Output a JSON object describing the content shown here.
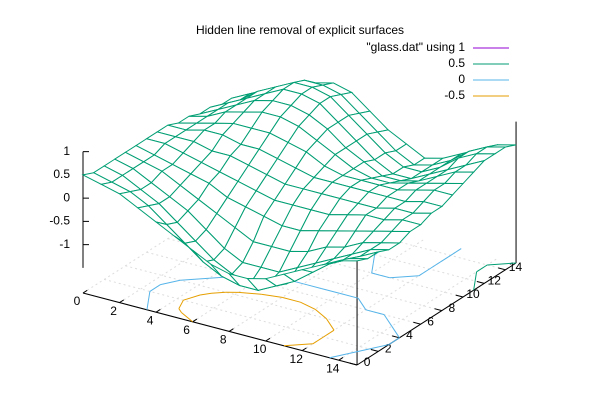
{
  "chart_data": {
    "type": "surface",
    "title": "Hidden line removal of explicit surfaces",
    "surface": {
      "name": "\"glass.dat\" using 1",
      "color": "#9400d3",
      "mesh_color": "#009e73"
    },
    "contours": [
      {
        "level": 0.5,
        "color": "#009e73"
      },
      {
        "level": 0,
        "color": "#56b4e9"
      },
      {
        "level": -0.5,
        "color": "#e69f00"
      }
    ],
    "x": [
      0,
      1,
      2,
      3,
      4,
      5,
      6,
      7,
      8,
      9,
      10,
      11,
      12,
      13,
      14,
      15
    ],
    "y": [
      0,
      1,
      2,
      3,
      4,
      5,
      6,
      7,
      8,
      9,
      10,
      11,
      12,
      13,
      14,
      15
    ],
    "z": [
      [
        0.5,
        0.4,
        0.3,
        0.1,
        -0.1,
        -0.3,
        -0.5,
        -0.7,
        -0.8,
        -0.8,
        -0.7,
        -0.5,
        -0.3,
        -0.1,
        0.1,
        0.2
      ],
      [
        0.4,
        0.3,
        0.2,
        0,
        -0.3,
        -0.6,
        -0.9,
        -1.1,
        -1.2,
        -1.2,
        -1.0,
        -0.8,
        -0.5,
        -0.2,
        0,
        0.1
      ],
      [
        0.4,
        0.3,
        0.1,
        -0.1,
        -0.4,
        -0.7,
        -1.0,
        -1.2,
        -1.3,
        -1.2,
        -1.1,
        -0.8,
        -0.5,
        -0.3,
        -0.1,
        0.1
      ],
      [
        0.4,
        0.3,
        0.1,
        -0.1,
        -0.3,
        -0.6,
        -0.9,
        -1.1,
        -1.1,
        -1.1,
        -0.9,
        -0.7,
        -0.5,
        -0.3,
        -0.1,
        0
      ],
      [
        0.4,
        0.3,
        0.2,
        0,
        -0.2,
        -0.4,
        -0.6,
        -0.8,
        -0.8,
        -0.8,
        -0.7,
        -0.5,
        -0.4,
        -0.2,
        -0.1,
        0
      ],
      [
        0.4,
        0.3,
        0.2,
        0.1,
        0,
        -0.2,
        -0.3,
        -0.4,
        -0.5,
        -0.5,
        -0.4,
        -0.3,
        -0.2,
        -0.1,
        0,
        0.1
      ],
      [
        0.4,
        0.4,
        0.3,
        0.2,
        0.1,
        0,
        -0.1,
        -0.2,
        -0.2,
        -0.2,
        -0.2,
        -0.1,
        0,
        0,
        0.1,
        0.1
      ],
      [
        0.4,
        0.4,
        0.4,
        0.3,
        0.3,
        0.2,
        0.1,
        0,
        0,
        0,
        0,
        0,
        0,
        0.1,
        0.1,
        0.2
      ],
      [
        0.4,
        0.4,
        0.5,
        0.5,
        0.4,
        0.4,
        0.3,
        0.2,
        0.1,
        0.1,
        0.1,
        0.1,
        0.1,
        0.1,
        0.2,
        0.2
      ],
      [
        0.3,
        0.4,
        0.5,
        0.6,
        0.6,
        0.6,
        0.5,
        0.4,
        0.2,
        0.1,
        0.1,
        0.1,
        0.1,
        0.2,
        0.3,
        0.3
      ],
      [
        0.3,
        0.4,
        0.6,
        0.7,
        0.8,
        0.8,
        0.7,
        0.5,
        0.3,
        0.1,
        0,
        0,
        0.1,
        0.2,
        0.3,
        0.4
      ],
      [
        0.2,
        0.4,
        0.6,
        0.8,
        0.9,
        0.9,
        0.8,
        0.6,
        0.3,
        0.1,
        -0.1,
        -0.1,
        0,
        0.2,
        0.4,
        0.5
      ],
      [
        0.2,
        0.4,
        0.6,
        0.8,
        1.0,
        1.0,
        0.9,
        0.6,
        0.3,
        0,
        -0.2,
        -0.2,
        0,
        0.2,
        0.4,
        0.6
      ],
      [
        0.1,
        0.3,
        0.6,
        0.8,
        1.0,
        1.0,
        0.9,
        0.6,
        0.3,
        0,
        -0.2,
        -0.2,
        0,
        0.3,
        0.5,
        0.6
      ],
      [
        0.1,
        0.3,
        0.5,
        0.7,
        0.9,
        0.9,
        0.8,
        0.5,
        0.2,
        -0.1,
        -0.3,
        -0.2,
        0,
        0.3,
        0.5,
        0.6
      ],
      [
        0,
        0.2,
        0.4,
        0.6,
        0.7,
        0.8,
        0.7,
        0.4,
        0.1,
        -0.1,
        -0.3,
        -0.2,
        0,
        0.2,
        0.4,
        0.5
      ]
    ],
    "xlim": [
      0,
      15
    ],
    "ylim": [
      0,
      15
    ],
    "zlim": [
      -1.5,
      1
    ],
    "xticks": [
      0,
      2,
      4,
      6,
      8,
      10,
      12,
      14
    ],
    "yticks": [
      0,
      2,
      4,
      6,
      8,
      10,
      12,
      14
    ],
    "zticks": [
      -1,
      -0.5,
      0,
      0.5,
      1
    ],
    "grid": true
  }
}
